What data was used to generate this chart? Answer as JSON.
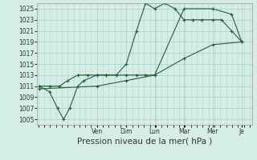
{
  "bg_color": "#d4ede6",
  "grid_color": "#b0d4cc",
  "line_color": "#2a5c3a",
  "marker_color": "#2a5c3a",
  "ylim": [
    1004,
    1026
  ],
  "yticks": [
    1005,
    1007,
    1009,
    1011,
    1013,
    1015,
    1017,
    1019,
    1021,
    1023,
    1025
  ],
  "day_positions": [
    0.285,
    0.43,
    0.57,
    0.715,
    0.857,
    1.0
  ],
  "day_labels": [
    "Ven",
    "Dim",
    "Lun",
    "Mar",
    "Mer",
    "Je"
  ],
  "series1_x": [
    0,
    0.05,
    0.1,
    0.14,
    0.19,
    0.24,
    0.285,
    0.33,
    0.38,
    0.43,
    0.48,
    0.525,
    0.57,
    0.62,
    0.67,
    0.715,
    0.76,
    0.8,
    0.857,
    0.9,
    0.95,
    1.0
  ],
  "series1_y": [
    1011,
    1011,
    1011,
    1012,
    1013,
    1013,
    1013,
    1013,
    1013,
    1015,
    1021,
    1026,
    1025,
    1026,
    1025,
    1023,
    1023,
    1023,
    1023,
    1023,
    1021,
    1019
  ],
  "series2_x": [
    0,
    0.05,
    0.09,
    0.12,
    0.15,
    0.19,
    0.22,
    0.285,
    0.33,
    0.38,
    0.43,
    0.48,
    0.525,
    0.57,
    0.715,
    0.857,
    0.95,
    1.0
  ],
  "series2_y": [
    1011,
    1010,
    1007,
    1005,
    1007,
    1011,
    1012,
    1013,
    1013,
    1013,
    1013,
    1013,
    1013,
    1013,
    1025,
    1025,
    1024,
    1019
  ],
  "series3_x": [
    0,
    0.285,
    0.43,
    0.57,
    0.715,
    0.857,
    1.0
  ],
  "series3_y": [
    1010.5,
    1011,
    1012,
    1013,
    1016,
    1018.5,
    1019
  ],
  "xlabel": "Pression niveau de la mer( hPa )",
  "xlabel_fontsize": 7.5
}
